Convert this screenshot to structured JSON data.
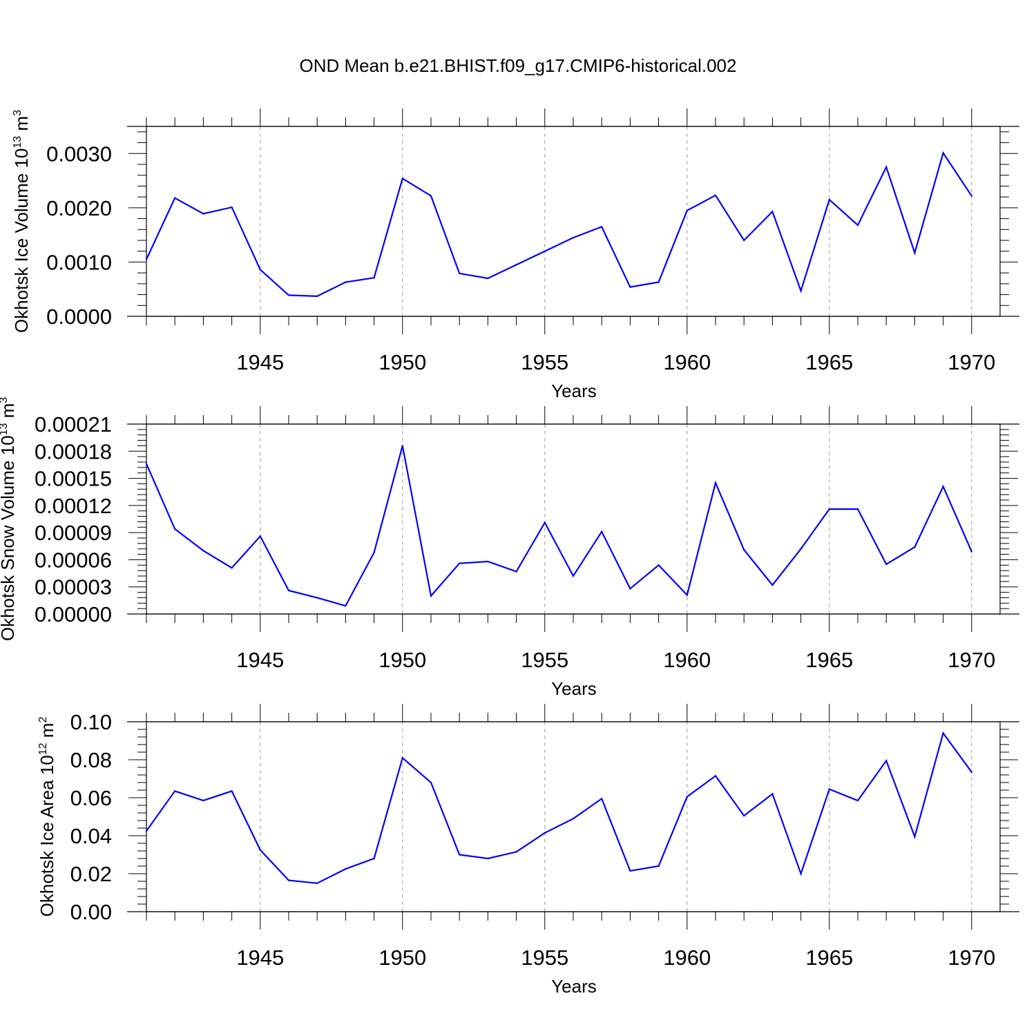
{
  "title": "OND Mean b.e21.BHIST.f09_g17.CMIP6-historical.002",
  "colors": {
    "series": "#0000ff",
    "axes": "#000000",
    "grid": "#999999"
  },
  "chart_data": [
    {
      "type": "line",
      "xlabel": "Years",
      "ylabel": "Okhotsk Ice Volume 10",
      "ylabel_exponent": "13",
      "ylabel_unit": "m",
      "ylabel_unit_exponent": "3",
      "xlim": [
        1941,
        1971
      ],
      "ylim": [
        0,
        0.0035
      ],
      "xticks": [
        1945,
        1950,
        1955,
        1960,
        1965,
        1970
      ],
      "yticks": [
        0,
        0.001,
        0.002,
        0.003
      ],
      "ytick_labels": [
        "0.0000",
        "0.0010",
        "0.0020",
        "0.0030"
      ],
      "x": [
        1941,
        1942,
        1943,
        1944,
        1945,
        1946,
        1947,
        1948,
        1949,
        1950,
        1951,
        1952,
        1953,
        1954,
        1955,
        1956,
        1957,
        1958,
        1959,
        1960,
        1961,
        1962,
        1963,
        1964,
        1965,
        1966,
        1967,
        1968,
        1969,
        1970
      ],
      "values": [
        0.00105,
        0.00218,
        0.00189,
        0.00201,
        0.00086,
        0.00039,
        0.00037,
        0.00063,
        0.00071,
        0.00254,
        0.00222,
        0.00079,
        0.0007,
        0.00095,
        0.0012,
        0.00145,
        0.00165,
        0.00054,
        0.00063,
        0.00195,
        0.00223,
        0.0014,
        0.00193,
        0.00047,
        0.00215,
        0.00168,
        0.00275,
        0.00117,
        0.00301,
        0.00222
      ]
    },
    {
      "type": "line",
      "xlabel": "Years",
      "ylabel": "Okhotsk Snow Volume 10",
      "ylabel_exponent": "13",
      "ylabel_unit": "m",
      "ylabel_unit_exponent": "3",
      "xlim": [
        1941,
        1971
      ],
      "ylim": [
        0,
        0.00021
      ],
      "xticks": [
        1945,
        1950,
        1955,
        1960,
        1965,
        1970
      ],
      "yticks": [
        0,
        3e-05,
        6e-05,
        9e-05,
        0.00012,
        0.00015,
        0.00018,
        0.00021
      ],
      "ytick_labels": [
        "0.00000",
        "0.00003",
        "0.00006",
        "0.00009",
        "0.00012",
        "0.00015",
        "0.00018",
        "0.00021"
      ],
      "x": [
        1941,
        1942,
        1943,
        1944,
        1945,
        1946,
        1947,
        1948,
        1949,
        1950,
        1951,
        1952,
        1953,
        1954,
        1955,
        1956,
        1957,
        1958,
        1959,
        1960,
        1961,
        1962,
        1963,
        1964,
        1965,
        1966,
        1967,
        1968,
        1969,
        1970
      ],
      "values": [
        0.000166,
        9.4e-05,
        7e-05,
        5.1e-05,
        8.6e-05,
        2.6e-05,
        1.8e-05,
        9e-06,
        6.8e-05,
        0.000186,
        2e-05,
        5.6e-05,
        5.8e-05,
        4.7e-05,
        0.000101,
        4.2e-05,
        9.1e-05,
        2.8e-05,
        5.4e-05,
        2.1e-05,
        0.000145,
        7.1e-05,
        3.2e-05,
        7.2e-05,
        0.000116,
        0.000116,
        5.5e-05,
        7.4e-05,
        0.000141,
        6.9e-05
      ]
    },
    {
      "type": "line",
      "xlabel": "Years",
      "ylabel": "Okhotsk Ice Area 10",
      "ylabel_exponent": "12",
      "ylabel_unit": "m",
      "ylabel_unit_exponent": "2",
      "xlim": [
        1941,
        1971
      ],
      "ylim": [
        0,
        0.1
      ],
      "xticks": [
        1945,
        1950,
        1955,
        1960,
        1965,
        1970
      ],
      "yticks": [
        0,
        0.02,
        0.04,
        0.06,
        0.08,
        0.1
      ],
      "ytick_labels": [
        "0.00",
        "0.02",
        "0.04",
        "0.06",
        "0.08",
        "0.10"
      ],
      "x": [
        1941,
        1942,
        1943,
        1944,
        1945,
        1946,
        1947,
        1948,
        1949,
        1950,
        1951,
        1952,
        1953,
        1954,
        1955,
        1956,
        1957,
        1958,
        1959,
        1960,
        1961,
        1962,
        1963,
        1964,
        1965,
        1966,
        1967,
        1968,
        1969,
        1970
      ],
      "values": [
        0.0425,
        0.0635,
        0.0585,
        0.0635,
        0.0325,
        0.0165,
        0.015,
        0.0225,
        0.028,
        0.081,
        0.068,
        0.03,
        0.028,
        0.0315,
        0.0415,
        0.049,
        0.0595,
        0.0215,
        0.024,
        0.0605,
        0.0715,
        0.0505,
        0.062,
        0.02,
        0.0645,
        0.0585,
        0.0795,
        0.0395,
        0.094,
        0.0735
      ]
    }
  ]
}
